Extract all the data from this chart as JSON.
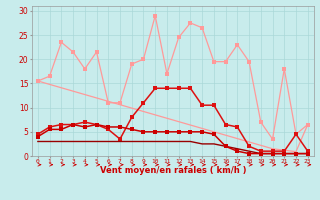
{
  "x": [
    0,
    1,
    2,
    3,
    4,
    5,
    6,
    7,
    8,
    9,
    10,
    11,
    12,
    13,
    14,
    15,
    16,
    17,
    18,
    19,
    20,
    21,
    22,
    23
  ],
  "bg_color": "#c8ecec",
  "grid_color": "#aad8d8",
  "xlabel": "Vent moyen/en rafales ( km/h )",
  "xlabel_color": "#cc0000",
  "tick_color": "#cc0000",
  "ylim": [
    0,
    31
  ],
  "yticks": [
    0,
    5,
    10,
    15,
    20,
    25,
    30
  ],
  "line1_color": "#ff9999",
  "line1_y": [
    15.5,
    16.5,
    23.5,
    21.5,
    18.0,
    21.5,
    11.0,
    11.0,
    19.0,
    20.0,
    29.0,
    17.0,
    24.5,
    27.5,
    26.5,
    19.5,
    19.5,
    23.0,
    19.5,
    7.0,
    3.5,
    18.0,
    4.5,
    6.5
  ],
  "line2_color": "#ff9999",
  "line2_y": [
    15.5,
    14.8,
    14.1,
    13.4,
    12.7,
    12.0,
    11.3,
    10.6,
    9.9,
    9.2,
    8.5,
    7.8,
    7.1,
    6.4,
    5.7,
    5.0,
    4.3,
    3.6,
    2.9,
    2.2,
    1.5,
    1.2,
    0.9,
    6.5
  ],
  "line3_color": "#dd1111",
  "line3_y": [
    4.5,
    6.0,
    6.5,
    6.5,
    7.0,
    6.5,
    5.5,
    3.5,
    8.0,
    11.0,
    14.0,
    14.0,
    14.0,
    14.0,
    10.5,
    10.5,
    6.5,
    6.0,
    2.0,
    1.0,
    1.0,
    1.0,
    4.5,
    1.0
  ],
  "line4_color": "#990000",
  "line4_y": [
    3.0,
    3.0,
    3.0,
    3.0,
    3.0,
    3.0,
    3.0,
    3.0,
    3.0,
    3.0,
    3.0,
    3.0,
    3.0,
    3.0,
    2.5,
    2.5,
    2.0,
    1.5,
    1.0,
    0.5,
    0.5,
    0.5,
    0.5,
    0.5
  ],
  "line5_color": "#cc0000",
  "line5_y": [
    4.0,
    5.5,
    5.5,
    6.5,
    6.0,
    6.5,
    6.0,
    6.0,
    5.5,
    5.0,
    5.0,
    5.0,
    5.0,
    5.0,
    5.0,
    4.5,
    2.0,
    1.0,
    0.5,
    0.5,
    0.5,
    0.5,
    0.5,
    0.5
  ],
  "arrow_color": "#cc0000"
}
